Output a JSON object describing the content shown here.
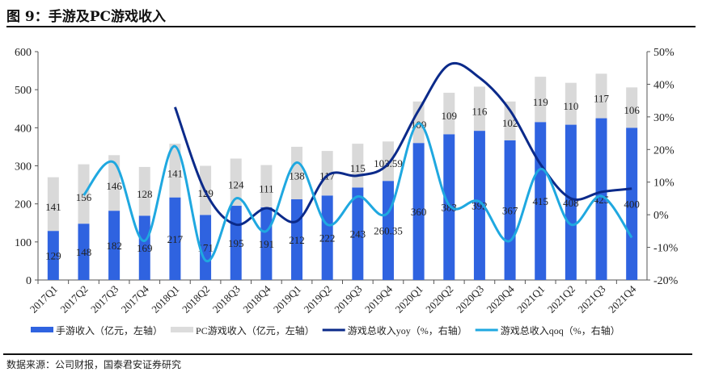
{
  "title": "图 9：手游及PC游戏收入",
  "source": "数据来源：公司财报，国泰君安证券研究",
  "chart_data": {
    "type": "bar",
    "stacked": true,
    "categories": [
      "2017Q1",
      "2017Q2",
      "2017Q3",
      "2017Q4",
      "2018Q1",
      "2018Q2",
      "2018Q3",
      "2018Q4",
      "2019Q1",
      "2019Q2",
      "2019Q3",
      "2019Q4",
      "2020Q1",
      "2020Q2",
      "2020Q3",
      "2020Q4",
      "2021Q1",
      "2021Q2",
      "2021Q3",
      "2021Q4"
    ],
    "series": [
      {
        "name": "手游收入（亿元，左轴）",
        "type": "bar",
        "axis": "left",
        "color": "#2f63e0",
        "values": [
          129,
          148,
          182,
          169,
          217,
          171,
          195,
          191,
          212,
          222,
          243,
          260.35,
          360,
          383,
          392,
          367,
          415,
          408,
          425,
          400
        ],
        "labels": [
          "129",
          "148",
          "182",
          "169",
          "217",
          "171",
          "195",
          "191",
          "212",
          "222",
          "243",
          "260.35",
          "360",
          "383",
          "392",
          "367",
          "415",
          "408",
          "425",
          "400"
        ]
      },
      {
        "name": "PC游戏收入（亿元，左轴）",
        "type": "bar",
        "axis": "left",
        "color": "#d9d9d9",
        "values": [
          141,
          156,
          146,
          128,
          141,
          129,
          124,
          111,
          138,
          117,
          115,
          103.59,
          109,
          109,
          116,
          102,
          119,
          110,
          117,
          106
        ],
        "labels": [
          "141",
          "156",
          "146",
          "128",
          "141",
          "129",
          "124",
          "111",
          "138",
          "117",
          "115",
          "103.59",
          "109",
          "109",
          "116",
          "102",
          "119",
          "110",
          "117",
          "106"
        ]
      },
      {
        "name": "游戏总收入yoy（%，右轴）",
        "type": "line",
        "axis": "right",
        "color": "#0b2a8a",
        "values": [
          null,
          null,
          null,
          null,
          33,
          7,
          -3,
          2,
          -2,
          12,
          12,
          15.6,
          32,
          46,
          42,
          32,
          15.5,
          5,
          7,
          8
        ]
      },
      {
        "name": "游戏总收入qoq（%，右轴）",
        "type": "line",
        "axis": "right",
        "color": "#1fa8e0",
        "values": [
          null,
          6,
          16,
          -8,
          21,
          -14,
          5,
          -5,
          16,
          -3,
          5.6,
          0.7,
          28,
          3,
          4,
          -8,
          14,
          -3,
          5.7,
          -7
        ]
      }
    ],
    "ylim": [
      0,
      600
    ],
    "yticks": [
      "0",
      "100",
      "200",
      "300",
      "400",
      "500",
      "600"
    ],
    "y2lim": [
      -20,
      50
    ],
    "y2ticks": [
      "-20%",
      "-10%",
      "0%",
      "10%",
      "20%",
      "30%",
      "40%",
      "50%"
    ],
    "legend": "bottom"
  }
}
